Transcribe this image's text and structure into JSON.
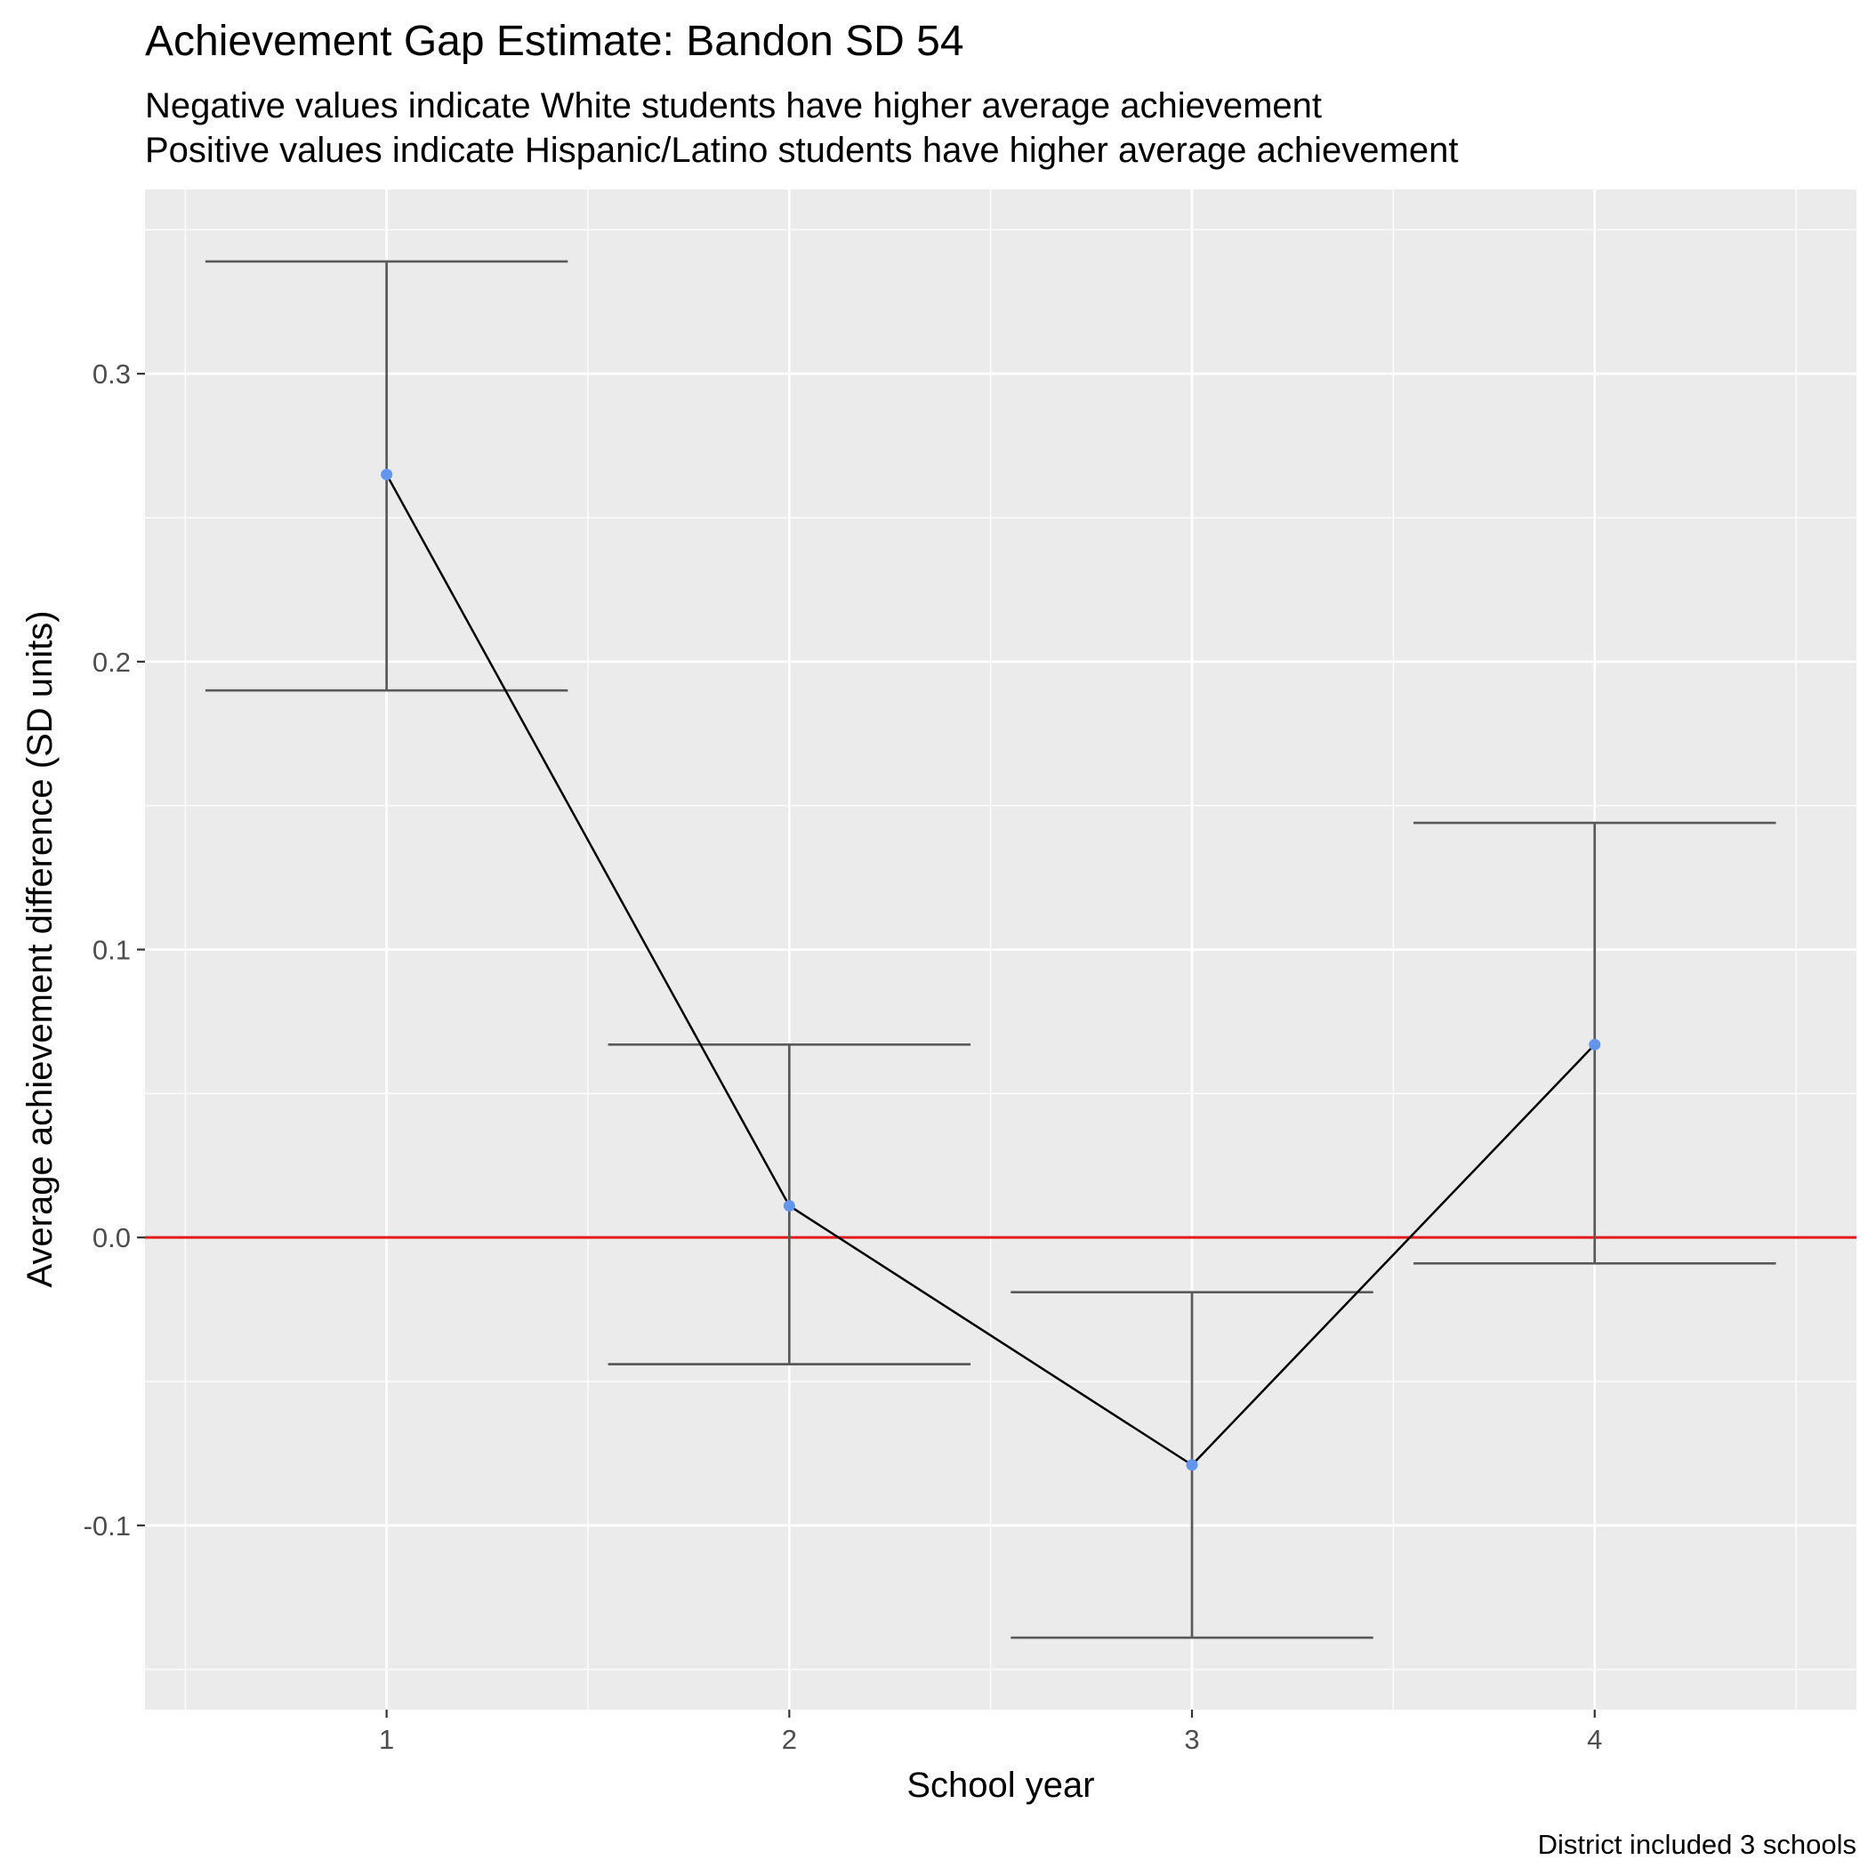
{
  "chart_data": {
    "type": "line",
    "title": "Achievement Gap Estimate: Bandon SD 54",
    "subtitle_lines": [
      "Negative values indicate White students have higher average achievement",
      "Positive values indicate Hispanic/Latino students have higher average achievement"
    ],
    "xlabel": "School year",
    "ylabel": "Average achievement difference (SD units)",
    "caption": "District included 3 schools",
    "x": [
      1,
      2,
      3,
      4
    ],
    "x_tick_labels": [
      "1",
      "2",
      "3",
      "4"
    ],
    "series": [
      {
        "values": [
          0.265,
          0.011,
          -0.079,
          0.067
        ],
        "lower": [
          0.19,
          -0.044,
          -0.139,
          -0.009
        ],
        "upper": [
          0.339,
          0.067,
          -0.019,
          0.144
        ]
      }
    ],
    "xlim": [
      0.4,
      4.65
    ],
    "ylim": [
      -0.164,
      0.364
    ],
    "y_ticks": [
      -0.1,
      0.0,
      0.1,
      0.2,
      0.3
    ],
    "y_tick_labels": [
      "-0.1",
      "0.0",
      "0.1",
      "0.2",
      "0.3"
    ],
    "reference_line": {
      "y": 0,
      "color": "#e31a1c"
    },
    "grid": true,
    "colors": {
      "panel_background": "#ebebeb",
      "grid": "#ffffff",
      "line": "#000000",
      "point": "#6495ed",
      "errorbar": "#595959"
    }
  }
}
